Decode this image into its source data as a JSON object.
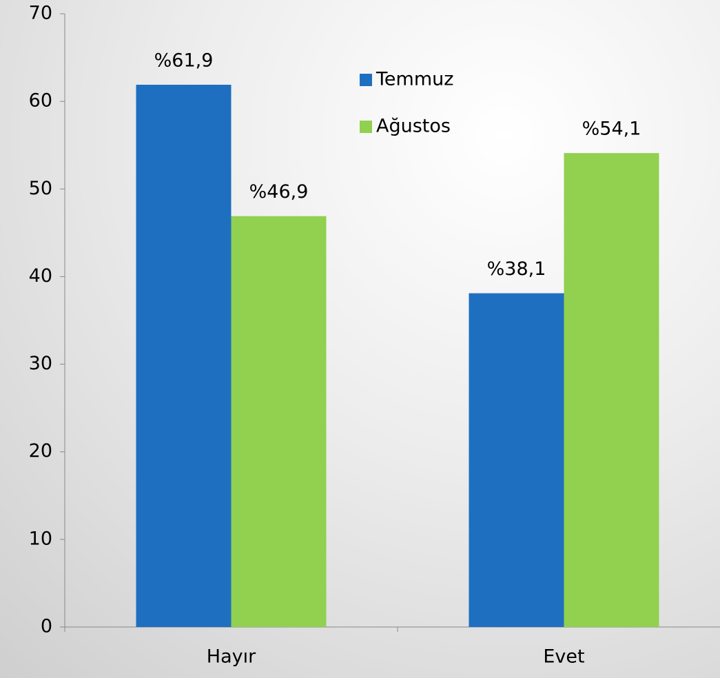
{
  "chart_data": {
    "type": "bar",
    "categories": [
      "Hayır",
      "Evet"
    ],
    "series": [
      {
        "name": "Temmuz",
        "color": "#1f6fc1",
        "values": [
          61.9,
          38.1
        ],
        "value_labels": [
          "%61,9",
          "%38,1"
        ]
      },
      {
        "name": "Ağustos",
        "color": "#92d050",
        "values": [
          46.9,
          54.1
        ],
        "value_labels": [
          "%46,9",
          "%54,1"
        ]
      }
    ],
    "ylim": [
      0,
      70
    ],
    "yticks": [
      0,
      10,
      20,
      30,
      40,
      50,
      60,
      70
    ],
    "grid": false,
    "legend": "top"
  }
}
